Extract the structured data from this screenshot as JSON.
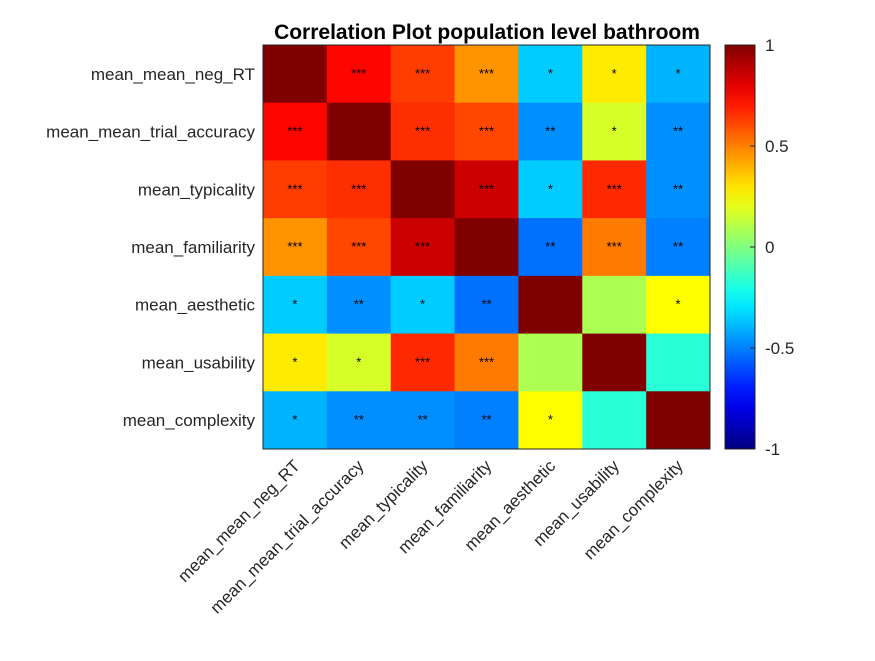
{
  "chart_data": {
    "type": "heatmap",
    "title": "Correlation Plot population level bathroom",
    "variables": [
      "mean_mean_neg_RT",
      "mean_mean_trial_accuracy",
      "mean_typicality",
      "mean_familiarity",
      "mean_aesthetic",
      "mean_usability",
      "mean_complexity"
    ],
    "values": [
      [
        1.0,
        0.74,
        0.63,
        0.46,
        -0.35,
        0.29,
        -0.4
      ],
      [
        0.74,
        1.0,
        0.66,
        0.61,
        -0.47,
        0.17,
        -0.47
      ],
      [
        0.63,
        0.66,
        1.0,
        0.85,
        -0.35,
        0.67,
        -0.47
      ],
      [
        0.46,
        0.61,
        0.85,
        1.0,
        -0.53,
        0.51,
        -0.5
      ],
      [
        -0.35,
        -0.47,
        -0.35,
        -0.53,
        1.0,
        0.09,
        0.25
      ],
      [
        0.29,
        0.17,
        0.67,
        0.51,
        0.09,
        1.0,
        -0.17
      ],
      [
        -0.4,
        -0.47,
        -0.47,
        -0.5,
        0.25,
        -0.17,
        1.0
      ]
    ],
    "significance": [
      [
        "",
        "***",
        "***",
        "***",
        "*",
        "*",
        "*"
      ],
      [
        "***",
        "",
        "***",
        "***",
        "**",
        "*",
        "**"
      ],
      [
        "***",
        "***",
        "",
        "***",
        "*",
        "***",
        "**"
      ],
      [
        "***",
        "***",
        "***",
        "",
        "**",
        "***",
        "**"
      ],
      [
        "*",
        "**",
        "*",
        "**",
        "",
        "",
        "*"
      ],
      [
        "*",
        "*",
        "***",
        "***",
        "",
        "",
        ""
      ],
      [
        "*",
        "**",
        "**",
        "**",
        "*",
        "",
        ""
      ]
    ],
    "colorbar": {
      "range": [
        -1,
        1
      ],
      "ticks": [
        1,
        0.5,
        0,
        -0.5,
        -1
      ],
      "tick_labels": [
        "1",
        "0.5",
        "0",
        "-0.5",
        "-1"
      ],
      "colormap": "jet"
    }
  }
}
